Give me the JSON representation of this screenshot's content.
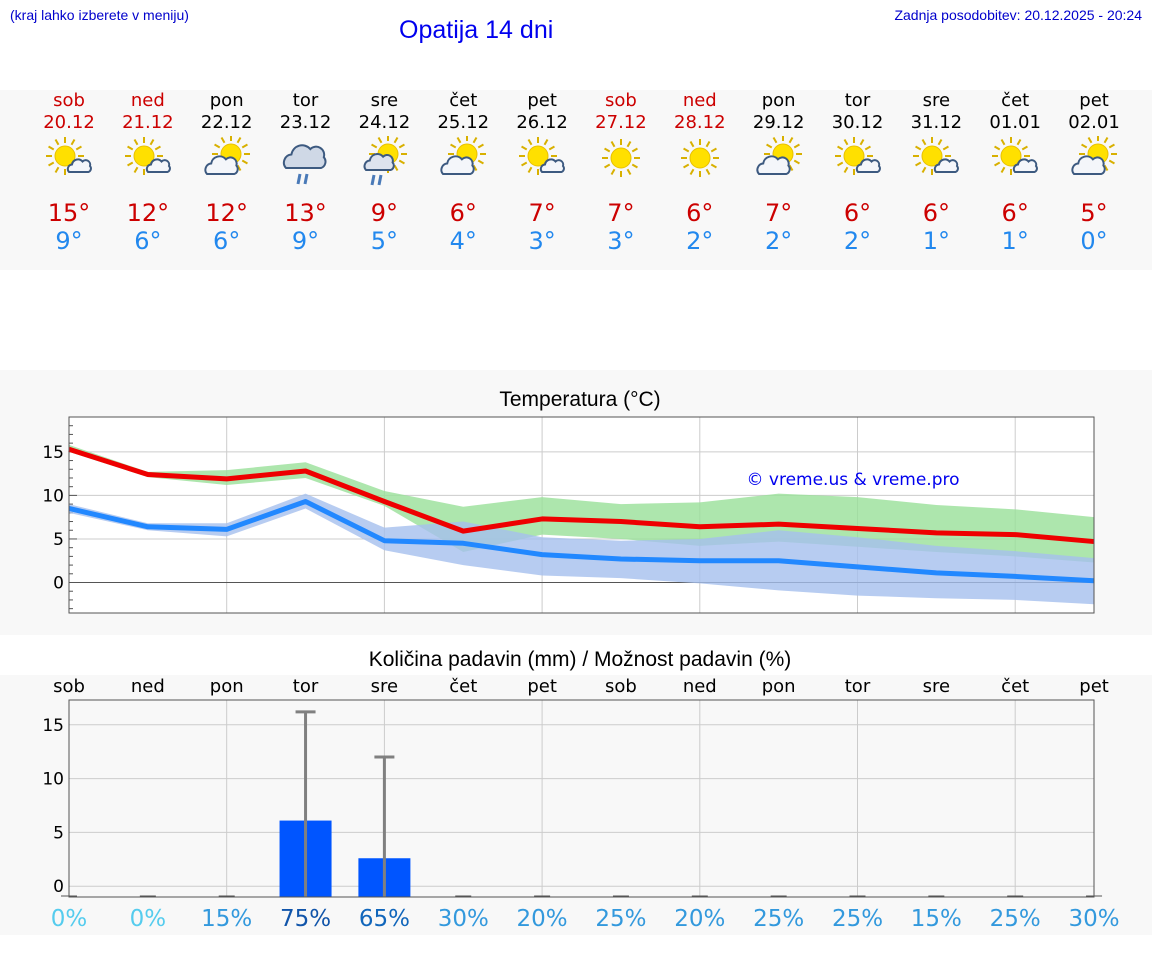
{
  "header": {
    "hint": "(kraj lahko izberete v meniju)",
    "title": "Opatija 14 dni",
    "updated": "Zadnja posodobitev: 20.12.2025 - 20:24"
  },
  "colors": {
    "weekend": "#cc0000",
    "max": "#cc0000",
    "min": "#2288ee",
    "bar": "#0055ff"
  },
  "forecast": [
    {
      "day": "sob",
      "date": "20.12",
      "weekend": true,
      "icon": "sun-cloud-icon",
      "max": "15°",
      "min": "9°"
    },
    {
      "day": "ned",
      "date": "21.12",
      "weekend": true,
      "icon": "sun-cloud-icon",
      "max": "12°",
      "min": "6°"
    },
    {
      "day": "pon",
      "date": "22.12",
      "weekend": false,
      "icon": "partly-cloudy-icon",
      "max": "12°",
      "min": "6°"
    },
    {
      "day": "tor",
      "date": "23.12",
      "weekend": false,
      "icon": "cloud-rain-icon",
      "max": "13°",
      "min": "9°"
    },
    {
      "day": "sre",
      "date": "24.12",
      "weekend": false,
      "icon": "sun-cloud-rain-icon",
      "max": "9°",
      "min": "5°"
    },
    {
      "day": "čet",
      "date": "25.12",
      "weekend": false,
      "icon": "partly-cloudy-icon",
      "max": "6°",
      "min": "4°"
    },
    {
      "day": "pet",
      "date": "26.12",
      "weekend": false,
      "icon": "sun-cloud-icon",
      "max": "7°",
      "min": "3°"
    },
    {
      "day": "sob",
      "date": "27.12",
      "weekend": true,
      "icon": "sun-icon",
      "max": "7°",
      "min": "3°"
    },
    {
      "day": "ned",
      "date": "28.12",
      "weekend": true,
      "icon": "sun-icon",
      "max": "6°",
      "min": "2°"
    },
    {
      "day": "pon",
      "date": "29.12",
      "weekend": false,
      "icon": "partly-cloudy-icon",
      "max": "7°",
      "min": "2°"
    },
    {
      "day": "tor",
      "date": "30.12",
      "weekend": false,
      "icon": "sun-cloud-icon",
      "max": "6°",
      "min": "2°"
    },
    {
      "day": "sre",
      "date": "31.12",
      "weekend": false,
      "icon": "sun-cloud-icon",
      "max": "6°",
      "min": "1°"
    },
    {
      "day": "čet",
      "date": "01.01",
      "weekend": false,
      "icon": "sun-cloud-icon",
      "max": "6°",
      "min": "1°"
    },
    {
      "day": "pet",
      "date": "02.01",
      "weekend": false,
      "icon": "partly-cloudy-icon",
      "max": "5°",
      "min": "0°"
    }
  ],
  "chart_data": [
    {
      "type": "line",
      "title": "Temperatura (°C)",
      "watermark": "© vreme.us & vreme.pro",
      "ylim": [
        -3.5,
        19
      ],
      "yticks": [
        0,
        5,
        10,
        15
      ],
      "x": [
        0,
        1,
        2,
        3,
        4,
        5,
        6,
        7,
        8,
        9,
        10,
        11,
        12,
        13
      ],
      "series": [
        {
          "name": "max",
          "color": "#ee0000",
          "values": [
            15.3,
            12.4,
            11.9,
            12.8,
            9.3,
            5.9,
            7.3,
            7.0,
            6.4,
            6.7,
            6.2,
            5.7,
            5.5,
            4.7
          ]
        },
        {
          "name": "min",
          "color": "#2288ff",
          "values": [
            8.5,
            6.4,
            6.1,
            9.3,
            4.8,
            4.5,
            3.2,
            2.7,
            2.5,
            2.5,
            1.8,
            1.1,
            0.7,
            0.2
          ]
        }
      ],
      "bands": [
        {
          "name": "max-range",
          "color": "#99e099",
          "low": [
            15.0,
            12.1,
            11.2,
            12.0,
            8.8,
            3.5,
            5.5,
            5.0,
            4.2,
            4.7,
            4.1,
            3.5,
            3.0,
            2.3
          ],
          "high": [
            15.8,
            12.7,
            12.9,
            13.8,
            10.5,
            8.7,
            9.8,
            9.0,
            9.2,
            10.2,
            9.8,
            8.9,
            8.4,
            7.5
          ]
        },
        {
          "name": "min-range",
          "color": "#a5bfee",
          "low": [
            8.0,
            6.0,
            5.3,
            8.5,
            3.7,
            2.0,
            0.8,
            0.5,
            -0.1,
            -0.9,
            -1.5,
            -1.8,
            -2.0,
            -2.5
          ],
          "high": [
            9.0,
            6.8,
            6.8,
            10.2,
            6.3,
            7.0,
            5.2,
            4.8,
            5.0,
            6.0,
            5.2,
            4.2,
            3.6,
            2.8
          ]
        }
      ]
    },
    {
      "type": "bar",
      "title": "Količina padavin (mm) / Možnost padavin (%)",
      "ylim": [
        -1,
        17.3
      ],
      "yticks": [
        0,
        5,
        10,
        15
      ],
      "categories": [
        "sob",
        "ned",
        "pon",
        "tor",
        "sre",
        "čet",
        "pet",
        "sob",
        "ned",
        "pon",
        "tor",
        "sre",
        "čet",
        "pet"
      ],
      "values": [
        0,
        0,
        0,
        6.1,
        2.6,
        0,
        0,
        0,
        0,
        0,
        0,
        0,
        0,
        0
      ],
      "error_high": [
        0,
        0,
        0,
        16.2,
        12.0,
        0,
        0,
        0,
        0,
        0,
        0,
        0,
        0,
        0
      ],
      "probability": [
        "0%",
        "0%",
        "15%",
        "75%",
        "65%",
        "30%",
        "20%",
        "25%",
        "20%",
        "25%",
        "25%",
        "15%",
        "25%",
        "30%"
      ],
      "probability_colors": [
        "#55ccee",
        "#55ccee",
        "#3399dd",
        "#1155aa",
        "#1166bb",
        "#3399dd",
        "#3399dd",
        "#3399dd",
        "#3399dd",
        "#3399dd",
        "#3399dd",
        "#3399dd",
        "#3399dd",
        "#3399dd"
      ]
    }
  ]
}
